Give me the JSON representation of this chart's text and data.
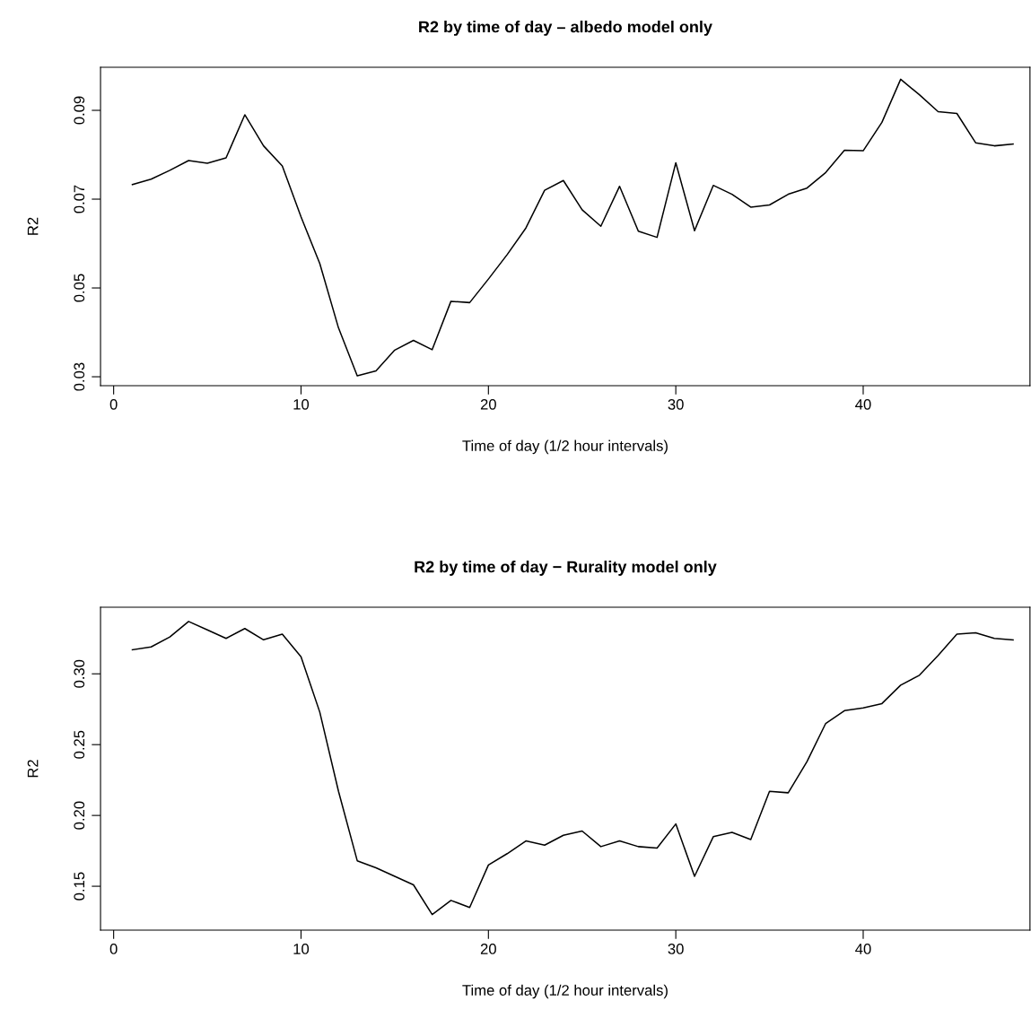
{
  "chart_data": [
    {
      "type": "line",
      "title": "R2 by time of day – albedo model only",
      "xlabel": "Time of day (1/2 hour intervals)",
      "ylabel": "R2",
      "x": [
        1,
        2,
        3,
        4,
        5,
        6,
        7,
        8,
        9,
        10,
        11,
        12,
        13,
        14,
        15,
        16,
        17,
        18,
        19,
        20,
        21,
        22,
        23,
        24,
        25,
        26,
        27,
        28,
        29,
        30,
        31,
        32,
        33,
        34,
        35,
        36,
        37,
        38,
        39,
        40,
        41,
        42,
        43,
        44,
        45,
        46,
        47,
        48
      ],
      "series": [
        {
          "color": "#000000",
          "values": [
            0.0733,
            0.0745,
            0.0765,
            0.0787,
            0.0781,
            0.0793,
            0.089,
            0.082,
            0.0775,
            0.066,
            0.0555,
            0.041,
            0.0302,
            0.0313,
            0.036,
            0.0382,
            0.0361,
            0.047,
            0.0467,
            0.052,
            0.0575,
            0.0635,
            0.072,
            0.0742,
            0.0676,
            0.0639,
            0.0729,
            0.0628,
            0.0614,
            0.0782,
            0.0629,
            0.0731,
            0.0711,
            0.0682,
            0.0687,
            0.0711,
            0.0725,
            0.076,
            0.081,
            0.0809,
            0.0873,
            0.097,
            0.0935,
            0.0897,
            0.0893,
            0.0827,
            0.082,
            0.0824
          ]
        }
      ],
      "xlim": [
        -0.7,
        48.9
      ],
      "ylim": [
        0.028,
        0.0997
      ],
      "xticks": [
        0,
        10,
        20,
        30,
        40
      ],
      "yticks": [
        0.03,
        0.05,
        0.07,
        0.09
      ],
      "grid": false,
      "legend": false,
      "line_style": "solid",
      "marker": "none"
    },
    {
      "type": "line",
      "title": "R2 by time of day − Rurality model only",
      "xlabel": "Time of day (1/2 hour intervals)",
      "ylabel": "R2",
      "x": [
        1,
        2,
        3,
        4,
        5,
        6,
        7,
        8,
        9,
        10,
        11,
        12,
        13,
        14,
        15,
        16,
        17,
        18,
        19,
        20,
        21,
        22,
        23,
        24,
        25,
        26,
        27,
        28,
        29,
        30,
        31,
        32,
        33,
        34,
        35,
        36,
        37,
        38,
        39,
        40,
        41,
        42,
        43,
        44,
        45,
        46,
        47,
        48
      ],
      "series": [
        {
          "color": "#000000",
          "values": [
            0.317,
            0.319,
            0.326,
            0.337,
            0.331,
            0.325,
            0.332,
            0.324,
            0.328,
            0.312,
            0.273,
            0.217,
            0.168,
            0.163,
            0.157,
            0.151,
            0.13,
            0.14,
            0.135,
            0.165,
            0.173,
            0.182,
            0.179,
            0.186,
            0.189,
            0.178,
            0.182,
            0.178,
            0.177,
            0.194,
            0.157,
            0.185,
            0.188,
            0.183,
            0.217,
            0.216,
            0.238,
            0.265,
            0.274,
            0.276,
            0.279,
            0.292,
            0.299,
            0.313,
            0.328,
            0.329,
            0.325,
            0.324
          ]
        }
      ],
      "xlim": [
        -0.7,
        48.9
      ],
      "ylim": [
        0.119,
        0.347
      ],
      "xticks": [
        0,
        10,
        20,
        30,
        40
      ],
      "yticks": [
        {
          "value": 0.15,
          "label": "0.15"
        },
        {
          "value": 0.2,
          "label": "0.20"
        },
        {
          "value": 0.25,
          "label": "0.25"
        },
        {
          "value": 0.3,
          "label": "0.30"
        }
      ],
      "grid": false,
      "legend": false,
      "line_style": "solid",
      "marker": "none"
    }
  ]
}
